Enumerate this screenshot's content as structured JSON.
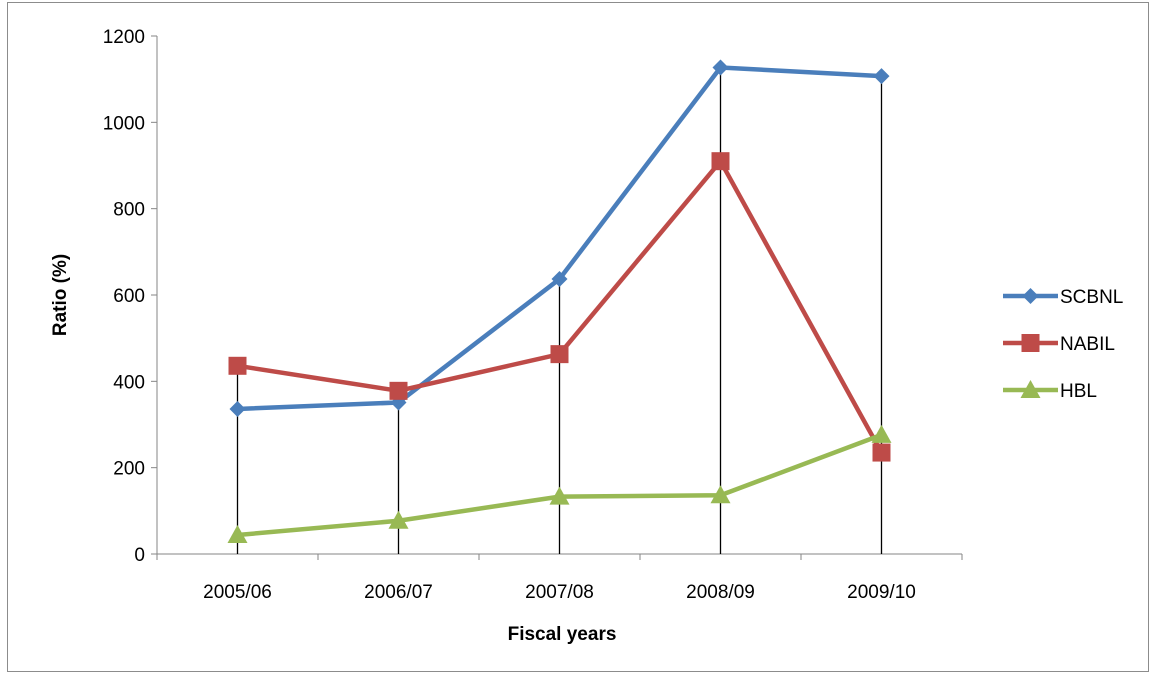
{
  "chart_data": {
    "type": "line",
    "title": "",
    "xlabel": "Fiscal years",
    "ylabel": "Ratio (%)",
    "categories": [
      "2005/06",
      "2006/07",
      "2007/08",
      "2008/09",
      "2009/10"
    ],
    "ylim": [
      0,
      1200
    ],
    "yticks": [
      0,
      200,
      400,
      600,
      800,
      1000,
      1200
    ],
    "grid": false,
    "drop_lines": true,
    "legend_position": "right",
    "series": [
      {
        "name": "SCBNL",
        "values": [
          336,
          351,
          637,
          1127,
          1107
        ],
        "color": "#4a7ebb",
        "marker": "diamond"
      },
      {
        "name": "NABIL",
        "values": [
          436,
          378,
          463,
          910,
          235
        ],
        "color": "#be4b48",
        "marker": "square"
      },
      {
        "name": "HBL",
        "values": [
          44,
          77,
          133,
          136,
          276
        ],
        "color": "#98b954",
        "marker": "triangle"
      }
    ]
  }
}
